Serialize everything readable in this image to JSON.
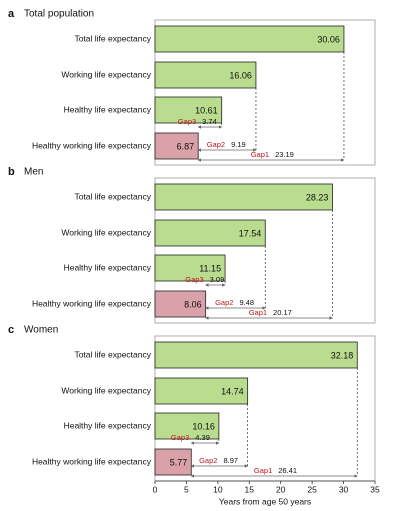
{
  "chart_data": [
    {
      "type": "bar",
      "panel": "a",
      "title": "Total population",
      "categories": [
        "Total life expectancy",
        "Working life expectancy",
        "Healthy life expectancy",
        "Healthy working life expectancy"
      ],
      "values": [
        30.06,
        16.06,
        10.61,
        6.87
      ],
      "colors": [
        "#b9dc8e",
        "#b9dc8e",
        "#b9dc8e",
        "#dba1aa"
      ],
      "gaps": [
        {
          "label": "Gap3",
          "value": 3.74
        },
        {
          "label": "Gap2",
          "value": 9.19
        },
        {
          "label": "Gap1",
          "value": 23.19
        }
      ],
      "xlim": [
        0,
        35
      ]
    },
    {
      "type": "bar",
      "panel": "b",
      "title": "Men",
      "categories": [
        "Total life expectancy",
        "Working life expectancy",
        "Healthy life expectancy",
        "Healthy working life expectancy"
      ],
      "values": [
        28.23,
        17.54,
        11.15,
        8.06
      ],
      "colors": [
        "#b9dc8e",
        "#b9dc8e",
        "#b9dc8e",
        "#dba1aa"
      ],
      "gaps": [
        {
          "label": "Gap3",
          "value": 3.09
        },
        {
          "label": "Gap2",
          "value": 9.48
        },
        {
          "label": "Gap1",
          "value": 20.17
        }
      ],
      "xlim": [
        0,
        35
      ]
    },
    {
      "type": "bar",
      "panel": "c",
      "title": "Women",
      "categories": [
        "Total life expectancy",
        "Working life expectancy",
        "Healthy life expectancy",
        "Healthy working life expectancy"
      ],
      "values": [
        32.18,
        14.74,
        10.16,
        5.77
      ],
      "colors": [
        "#b9dc8e",
        "#b9dc8e",
        "#b9dc8e",
        "#dba1aa"
      ],
      "gaps": [
        {
          "label": "Gap3",
          "value": 4.39
        },
        {
          "label": "Gap2",
          "value": 8.97
        },
        {
          "label": "Gap1",
          "value": 26.41
        }
      ],
      "xlim": [
        0,
        35
      ],
      "xticks": [
        0,
        5,
        10,
        15,
        20,
        25,
        30,
        35
      ],
      "xlabel": "Years from age 50 years"
    }
  ]
}
